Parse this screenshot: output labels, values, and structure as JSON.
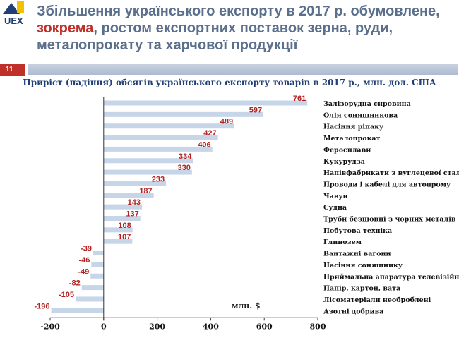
{
  "logo": {
    "text": "UEX"
  },
  "header": {
    "title_part1": "Збільшення українського експорту в 2017 р. обумовлене,",
    "title_accent": "зокрема",
    "title_part2": ",  ростом експортних поставок зерна, руди, металопрокату та харчової продукції",
    "slide_number": "11"
  },
  "colors": {
    "bar": "#c6d6e8",
    "label": "#b22222",
    "title": "#5a6f8c",
    "chart_title": "#1f3f75",
    "accent": "#c0302b"
  },
  "chart_data": {
    "type": "bar",
    "orientation": "horizontal",
    "title": "Приріст (падіння) обсягів українського експорту  товарів в 2017 р., млн. дол. США",
    "unit_label": "млн. $",
    "xlim": [
      -200,
      800
    ],
    "x_ticks": [
      -200,
      0,
      200,
      400,
      600,
      800
    ],
    "categories": [
      "Залізорудна сировина",
      "Олія соняшникова",
      "Насіння ріпаку",
      "Металопрокат",
      "Феросплави",
      "Кукурудза",
      "Напівфабрикати з вуглецевої сталі",
      "Проводи і кабелі для автопрому",
      "Чавун",
      "Судна",
      "Труби безшовні з чорних металів",
      "Побутова техніка",
      "Глинозем",
      "Вантажні вагони",
      "Насіння соняшнику",
      "Приймальна апаратура телевізійна",
      "Папір, картон, вата",
      "Лісоматеріали необроблені",
      "Азотні добрива"
    ],
    "values": [
      761,
      597,
      489,
      427,
      406,
      334,
      330,
      233,
      187,
      143,
      137,
      108,
      107,
      -39,
      -46,
      -49,
      -82,
      -105,
      -196
    ]
  }
}
